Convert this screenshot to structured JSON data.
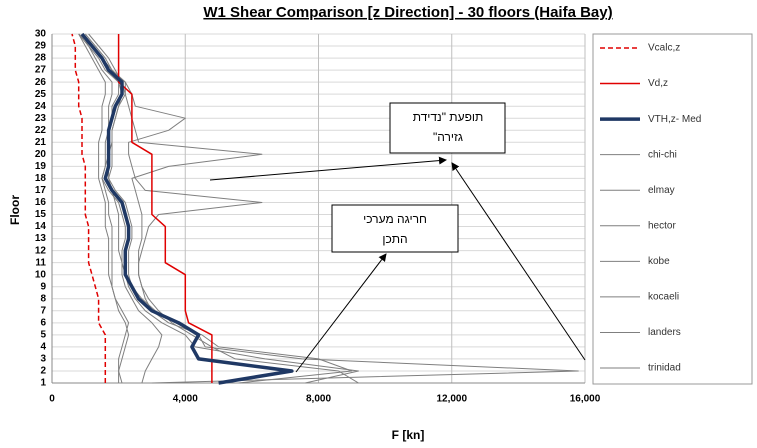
{
  "chart_data": {
    "type": "line",
    "title": "W1 Shear Comparison [z Direction] - 30 floors (Haifa Bay)",
    "x_label": "F [kn]",
    "y_label": "Floor",
    "categories": [
      "1",
      "2",
      "3",
      "4",
      "5",
      "6",
      "7",
      "8",
      "9",
      "10",
      "11",
      "12",
      "13",
      "14",
      "15",
      "16",
      "17",
      "18",
      "19",
      "20",
      "21",
      "22",
      "23",
      "24",
      "25",
      "26",
      "27",
      "28",
      "29",
      "30"
    ],
    "xlim": [
      0,
      16000
    ],
    "xticks": [
      0,
      {
        "value": 4000,
        "label": "4,000"
      },
      {
        "value": 8000,
        "label": "8,000"
      },
      {
        "value": 12000,
        "label": "12,000"
      },
      {
        "value": 16000,
        "label": "16,000"
      }
    ],
    "grid": true,
    "legend": "right",
    "series": [
      {
        "name": "Vcalc,z",
        "color": "#e00000",
        "dash": true,
        "width": 1.5,
        "values": [
          1600,
          1600,
          1600,
          1600,
          1600,
          1400,
          1400,
          1400,
          1300,
          1200,
          1100,
          1100,
          1100,
          1100,
          1000,
          1000,
          1000,
          1000,
          1000,
          900,
          900,
          900,
          900,
          800,
          800,
          800,
          700,
          700,
          700,
          600
        ]
      },
      {
        "name": "Vd,z",
        "color": "#e00000",
        "dash": false,
        "width": 1.5,
        "values": [
          4800,
          4800,
          4800,
          4800,
          4800,
          4100,
          4000,
          4000,
          4000,
          4000,
          3400,
          3400,
          3400,
          3400,
          3000,
          3000,
          3000,
          3000,
          3000,
          3000,
          2400,
          2400,
          2400,
          2400,
          2400,
          2000,
          2000,
          2000,
          2000,
          2000
        ]
      },
      {
        "name": "VTH,z- Med",
        "color": "#1f3864",
        "dash": false,
        "width": 3.5,
        "values": [
          5000,
          7200,
          4400,
          4200,
          4400,
          3800,
          3000,
          2600,
          2400,
          2200,
          2200,
          2200,
          2300,
          2300,
          2200,
          2100,
          1800,
          1600,
          1700,
          1700,
          1700,
          1700,
          1800,
          1900,
          2100,
          2100,
          1700,
          1500,
          1200,
          900
        ]
      },
      {
        "name": "chi-chi",
        "color": "#7f7f7f",
        "dash": false,
        "width": 1,
        "values": [
          5600,
          9000,
          8000,
          5000,
          4500,
          3500,
          3000,
          2800,
          2700,
          2600,
          2600,
          2600,
          2700,
          2700,
          2700,
          2600,
          2500,
          2400,
          3500,
          6300,
          2600,
          2500,
          2400,
          2300,
          2200,
          2100,
          1900,
          1700,
          1400,
          1100
        ]
      },
      {
        "name": "elmay",
        "color": "#7f7f7f",
        "dash": false,
        "width": 1,
        "values": [
          2000,
          2000,
          2100,
          2200,
          2300,
          2200,
          2000,
          1900,
          1800,
          1700,
          1700,
          1700,
          1700,
          1600,
          1600,
          1600,
          1500,
          1400,
          1400,
          1400,
          1400,
          1500,
          1500,
          1500,
          1600,
          1600,
          1400,
          1200,
          1000,
          800
        ]
      },
      {
        "name": "hector",
        "color": "#7f7f7f",
        "dash": false,
        "width": 1,
        "values": [
          9200,
          8600,
          5500,
          4800,
          4200,
          3600,
          3200,
          2900,
          2700,
          2600,
          2600,
          2700,
          2800,
          2900,
          3200,
          6300,
          2800,
          2500,
          2400,
          2300,
          2300,
          3500,
          4000,
          2500,
          2400,
          2200,
          1800,
          1600,
          1300,
          1000
        ]
      },
      {
        "name": "kobe",
        "color": "#7f7f7f",
        "dash": false,
        "width": 1,
        "values": [
          2700,
          2800,
          3000,
          3200,
          3300,
          3000,
          2600,
          2400,
          2200,
          2100,
          2100,
          2000,
          2000,
          2000,
          2000,
          1900,
          1800,
          1700,
          1700,
          1700,
          1800,
          1800,
          1900,
          2000,
          2100,
          2000,
          1700,
          1500,
          1200,
          900
        ]
      },
      {
        "name": "kocaeli",
        "color": "#7f7f7f",
        "dash": false,
        "width": 1,
        "values": [
          3000,
          15800,
          7500,
          4600,
          4400,
          3700,
          3100,
          2700,
          2400,
          2300,
          2300,
          2300,
          2400,
          2400,
          2300,
          2200,
          1900,
          1700,
          1800,
          1800,
          1800,
          1800,
          1900,
          2000,
          2200,
          2200,
          1800,
          1500,
          1200,
          800
        ]
      },
      {
        "name": "landers",
        "color": "#7f7f7f",
        "dash": false,
        "width": 1,
        "values": [
          7600,
          9200,
          6400,
          4300,
          4000,
          3300,
          2800,
          2500,
          2300,
          2200,
          2100,
          2100,
          2200,
          2200,
          2100,
          2000,
          1700,
          1500,
          1600,
          1700,
          1700,
          1700,
          1800,
          1800,
          2000,
          2000,
          1600,
          1400,
          1100,
          800
        ]
      },
      {
        "name": "trinidad",
        "color": "#7f7f7f",
        "dash": false,
        "width": 1,
        "values": [
          2100,
          2000,
          2000,
          2100,
          2200,
          2300,
          2100,
          1900,
          1800,
          1800,
          1800,
          1800,
          1800,
          1800,
          1700,
          1700,
          1600,
          1500,
          1600,
          1600,
          1600,
          1700,
          1700,
          1700,
          1800,
          1800,
          1500,
          1300,
          1100,
          900
        ]
      }
    ],
    "annotations": [
      [
        "תופעת \"נדידת",
        "גזירה\""
      ],
      [
        "חריגה מערכי",
        "התכן"
      ]
    ]
  }
}
